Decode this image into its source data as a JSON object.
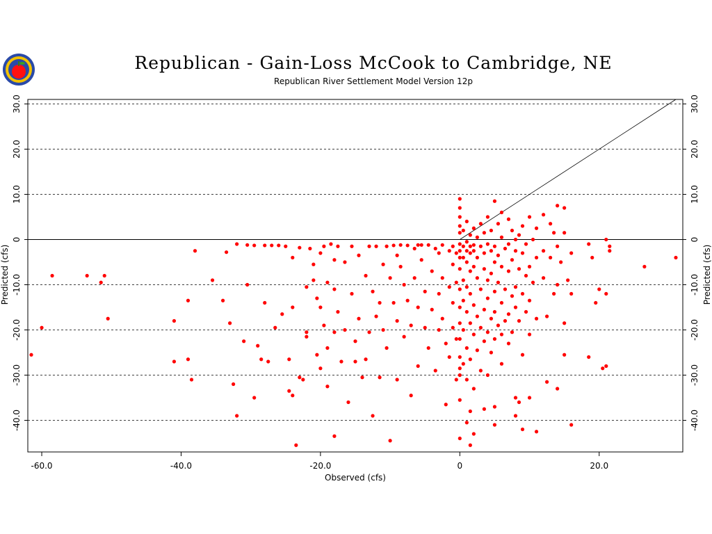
{
  "title": "Republican - Gain-Loss McCook to Cambridge, NE",
  "subtitle": "Republican River Settlement Model Version 12p",
  "logo": {
    "icon": "apple-logo-icon"
  },
  "colors": {
    "points": "#ff0000",
    "axes": "#000000",
    "background": "#ffffff"
  },
  "chart_data": {
    "type": "scatter",
    "title": "Republican - Gain-Loss McCook to Cambridge, NE",
    "subtitle": "Republican River Settlement Model Version 12p",
    "xlabel": "Observed (cfs)",
    "ylabel": "Predicted (cfs)",
    "xlim": [
      -62,
      32
    ],
    "ylim": [
      -47,
      31
    ],
    "xticks": [
      -60,
      -40,
      -20,
      0,
      20
    ],
    "xtick_labels": [
      "-60.0",
      "-40.0",
      "-20.0",
      "0",
      "20.0"
    ],
    "yticks": [
      30,
      20,
      10,
      0,
      -10,
      -20,
      -30,
      -40
    ],
    "ytick_labels": [
      "30.0",
      "20.0",
      "10.0",
      "0",
      "-10.0",
      "-20.0",
      "-30.0",
      "-40.0"
    ],
    "grid": "horizontal dashed",
    "reference_line": {
      "type": "1:1",
      "from": [
        0,
        0
      ],
      "to": [
        31,
        31
      ]
    },
    "points": [
      [
        -61.5,
        -25.5
      ],
      [
        -60,
        -19.5
      ],
      [
        -58.5,
        -8
      ],
      [
        -53.5,
        -8
      ],
      [
        -51.5,
        -9.5
      ],
      [
        -51,
        -8
      ],
      [
        -50.5,
        -17.5
      ],
      [
        -41,
        -18
      ],
      [
        -41,
        -27
      ],
      [
        -39,
        -13.5
      ],
      [
        -39,
        -26.5
      ],
      [
        -38.5,
        -31
      ],
      [
        -38,
        -2.5
      ],
      [
        -35.5,
        -9
      ],
      [
        -34,
        -13.5
      ],
      [
        -33.5,
        -2.8
      ],
      [
        -33,
        -18.5
      ],
      [
        -32.5,
        -32
      ],
      [
        -32,
        -39
      ],
      [
        -32,
        -1
      ],
      [
        -31,
        -22.5
      ],
      [
        -30.5,
        -10
      ],
      [
        -30.5,
        -1.2
      ],
      [
        -29.5,
        -1.3
      ],
      [
        -29.5,
        -35
      ],
      [
        -29,
        -23.5
      ],
      [
        -28.5,
        -26.5
      ],
      [
        -28,
        -1.3
      ],
      [
        -28,
        -14
      ],
      [
        -27.5,
        -27
      ],
      [
        -27,
        -1.3
      ],
      [
        -26.5,
        -19.5
      ],
      [
        -26,
        -1.3
      ],
      [
        -25.5,
        -16.5
      ],
      [
        -25,
        -1.5
      ],
      [
        -24.5,
        -26.5
      ],
      [
        -24.5,
        -33.5
      ],
      [
        -24,
        -4
      ],
      [
        -24,
        -15
      ],
      [
        -24,
        -34.5
      ],
      [
        -23.5,
        -45.5
      ],
      [
        -23,
        -1.8
      ],
      [
        -23,
        -30.5
      ],
      [
        -22.5,
        -31
      ],
      [
        -22,
        -10.5
      ],
      [
        -22,
        -20.5
      ],
      [
        -22,
        -21.5
      ],
      [
        -21.5,
        -2
      ],
      [
        -21,
        -5.5
      ],
      [
        -21,
        -9
      ],
      [
        -20.5,
        -13
      ],
      [
        -20.5,
        -25.5
      ],
      [
        -20,
        -3
      ],
      [
        -20,
        -15
      ],
      [
        -20,
        -28.5
      ],
      [
        -19.5,
        -1.5
      ],
      [
        -19.5,
        -19
      ],
      [
        -19,
        -9.5
      ],
      [
        -19,
        -24
      ],
      [
        -19,
        -32.5
      ],
      [
        -18.5,
        -1
      ],
      [
        -18,
        -4.5
      ],
      [
        -18,
        -11
      ],
      [
        -18,
        -20.5
      ],
      [
        -18,
        -43.5
      ],
      [
        -17.5,
        -1.5
      ],
      [
        -17.5,
        -16
      ],
      [
        -17,
        -27
      ],
      [
        -16.5,
        -5
      ],
      [
        -16.5,
        -20
      ],
      [
        -16,
        -36
      ],
      [
        -15.5,
        -1.5
      ],
      [
        -15.5,
        -12
      ],
      [
        -15,
        -22.5
      ],
      [
        -15,
        -27
      ],
      [
        -14.5,
        -3.5
      ],
      [
        -14.5,
        -17.5
      ],
      [
        -14,
        -30.5
      ],
      [
        -13.5,
        -8
      ],
      [
        -13.5,
        -26.5
      ],
      [
        -13,
        -1.5
      ],
      [
        -13,
        -20.5
      ],
      [
        -12.5,
        -11.5
      ],
      [
        -12.5,
        -39
      ],
      [
        -12,
        -1.5
      ],
      [
        -12,
        -17
      ],
      [
        -11.5,
        -14
      ],
      [
        -11.5,
        -30.5
      ],
      [
        -11,
        -5.5
      ],
      [
        -11,
        -20
      ],
      [
        -10.5,
        -1.5
      ],
      [
        -10.5,
        -24
      ],
      [
        -10,
        -8.5
      ],
      [
        -10,
        -44.5
      ],
      [
        -9.5,
        -1.3
      ],
      [
        -9.5,
        -14
      ],
      [
        -9,
        -3.5
      ],
      [
        -9,
        -18
      ],
      [
        -9,
        -31
      ],
      [
        -8.5,
        -6
      ],
      [
        -8.5,
        -1.2
      ],
      [
        -8,
        -10
      ],
      [
        -8,
        -21.5
      ],
      [
        -7.5,
        -1.3
      ],
      [
        -7.5,
        -13.5
      ],
      [
        -7,
        -19
      ],
      [
        -7,
        -34.5
      ],
      [
        -6.5,
        -2
      ],
      [
        -6.5,
        -8.5
      ],
      [
        -6,
        -1.2
      ],
      [
        -6,
        -15
      ],
      [
        -6,
        -28
      ],
      [
        -5.5,
        -1.2
      ],
      [
        -5.5,
        -4.5
      ],
      [
        -5,
        -11.5
      ],
      [
        -5,
        -19.5
      ],
      [
        -4.5,
        -1.2
      ],
      [
        -4.5,
        -24
      ],
      [
        -4,
        -7
      ],
      [
        -4,
        -15.5
      ],
      [
        -3.5,
        -2
      ],
      [
        -3.5,
        -29
      ],
      [
        -3,
        -3
      ],
      [
        -3,
        -12
      ],
      [
        -3,
        -20
      ],
      [
        -2.5,
        -1.2
      ],
      [
        -2.5,
        -8.5
      ],
      [
        -2.5,
        -17.5
      ],
      [
        -2,
        -23
      ],
      [
        -2,
        -36.5
      ],
      [
        -1.5,
        -2.5
      ],
      [
        -1.5,
        -10.5
      ],
      [
        -1.5,
        -26
      ],
      [
        -1,
        -1.5
      ],
      [
        -1,
        -5.5
      ],
      [
        -1,
        -14
      ],
      [
        -1,
        -19.5
      ],
      [
        -0.5,
        -3
      ],
      [
        -0.5,
        -9.5
      ],
      [
        -0.5,
        -22
      ],
      [
        -0.5,
        -31
      ],
      [
        0,
        9
      ],
      [
        0,
        7
      ],
      [
        0,
        5
      ],
      [
        0,
        3
      ],
      [
        0,
        1.5
      ],
      [
        0,
        -1
      ],
      [
        0,
        -2.5
      ],
      [
        0,
        -4
      ],
      [
        0,
        -6.5
      ],
      [
        0,
        -11
      ],
      [
        0,
        -15
      ],
      [
        0,
        -18.5
      ],
      [
        0,
        -22
      ],
      [
        0,
        -26
      ],
      [
        0,
        -28.5
      ],
      [
        0,
        -30
      ],
      [
        0,
        -35.5
      ],
      [
        0,
        -44
      ],
      [
        0.5,
        2
      ],
      [
        0.5,
        -1.5
      ],
      [
        0.5,
        -4
      ],
      [
        0.5,
        -9
      ],
      [
        0.5,
        -13.5
      ],
      [
        0.5,
        -20
      ],
      [
        0.5,
        -27.5
      ],
      [
        1,
        4
      ],
      [
        1,
        -0.5
      ],
      [
        1,
        -2.5
      ],
      [
        1,
        -5
      ],
      [
        1,
        -10.5
      ],
      [
        1,
        -16
      ],
      [
        1,
        -24
      ],
      [
        1,
        -31
      ],
      [
        1,
        -40.5
      ],
      [
        1.5,
        1
      ],
      [
        1.5,
        -1.5
      ],
      [
        1.5,
        -3
      ],
      [
        1.5,
        -7
      ],
      [
        1.5,
        -12
      ],
      [
        1.5,
        -18.5
      ],
      [
        1.5,
        -26.5
      ],
      [
        1.5,
        -38
      ],
      [
        1.5,
        -45.5
      ],
      [
        2,
        2.5
      ],
      [
        2,
        -1.2
      ],
      [
        2,
        -2.5
      ],
      [
        2,
        -6
      ],
      [
        2,
        -14.5
      ],
      [
        2,
        -21
      ],
      [
        2,
        -33
      ],
      [
        2,
        -43
      ],
      [
        2.5,
        0.5
      ],
      [
        2.5,
        -4
      ],
      [
        2.5,
        -8.5
      ],
      [
        2.5,
        -17
      ],
      [
        2.5,
        -24.5
      ],
      [
        3,
        3.5
      ],
      [
        3,
        -1.5
      ],
      [
        3,
        -11
      ],
      [
        3,
        -19.5
      ],
      [
        3,
        -29
      ],
      [
        3.5,
        1.5
      ],
      [
        3.5,
        -3
      ],
      [
        3.5,
        -6.5
      ],
      [
        3.5,
        -15.5
      ],
      [
        3.5,
        -22.5
      ],
      [
        3.5,
        -37.5
      ],
      [
        4,
        5
      ],
      [
        4,
        -1
      ],
      [
        4,
        -9
      ],
      [
        4,
        -13
      ],
      [
        4,
        -20.5
      ],
      [
        4,
        -30
      ],
      [
        4.5,
        2
      ],
      [
        4.5,
        -2.5
      ],
      [
        4.5,
        -7.5
      ],
      [
        4.5,
        -17.5
      ],
      [
        4.5,
        -25
      ],
      [
        5,
        8.5
      ],
      [
        5,
        -1.5
      ],
      [
        5,
        -5
      ],
      [
        5,
        -11.5
      ],
      [
        5,
        -16
      ],
      [
        5,
        -22
      ],
      [
        5,
        -41
      ],
      [
        5,
        -37
      ],
      [
        5.5,
        3.5
      ],
      [
        5.5,
        -3.5
      ],
      [
        5.5,
        -9.5
      ],
      [
        5.5,
        -19
      ],
      [
        6,
        6
      ],
      [
        6,
        0.5
      ],
      [
        6,
        -6
      ],
      [
        6,
        -14
      ],
      [
        6,
        -21
      ],
      [
        6,
        -27.5
      ],
      [
        6.5,
        -2
      ],
      [
        6.5,
        -11
      ],
      [
        6.5,
        -18
      ],
      [
        7,
        4.5
      ],
      [
        7,
        -1
      ],
      [
        7,
        -7
      ],
      [
        7,
        -16.5
      ],
      [
        7,
        -23
      ],
      [
        7.5,
        2
      ],
      [
        7.5,
        -4.5
      ],
      [
        7.5,
        -12.5
      ],
      [
        7.5,
        -20.5
      ],
      [
        8,
        0
      ],
      [
        8,
        -2.5
      ],
      [
        8,
        -10.5
      ],
      [
        8,
        -15
      ],
      [
        8,
        -35
      ],
      [
        8,
        -39
      ],
      [
        8.5,
        1
      ],
      [
        8.5,
        -6.5
      ],
      [
        8.5,
        -18
      ],
      [
        8.5,
        -36
      ],
      [
        9,
        3
      ],
      [
        9,
        -3
      ],
      [
        9,
        -12
      ],
      [
        9,
        -25.5
      ],
      [
        9,
        -42
      ],
      [
        9.5,
        -1
      ],
      [
        9.5,
        -8
      ],
      [
        9.5,
        -16
      ],
      [
        10,
        5
      ],
      [
        10,
        -6
      ],
      [
        10,
        -13.5
      ],
      [
        10,
        -21
      ],
      [
        10,
        -35
      ],
      [
        10.5,
        0
      ],
      [
        10.5,
        -9.5
      ],
      [
        11,
        2.5
      ],
      [
        11,
        -4
      ],
      [
        11,
        -17.5
      ],
      [
        11,
        -42.5
      ],
      [
        12,
        5.5
      ],
      [
        12,
        -2.5
      ],
      [
        12,
        -8.5
      ],
      [
        12.5,
        -17
      ],
      [
        12.5,
        -31.5
      ],
      [
        13,
        3.5
      ],
      [
        13,
        -4
      ],
      [
        13.5,
        1.5
      ],
      [
        13.5,
        -12
      ],
      [
        14,
        7.5
      ],
      [
        14,
        -1.5
      ],
      [
        14,
        -10
      ],
      [
        14,
        -33
      ],
      [
        14.5,
        -5
      ],
      [
        15,
        7
      ],
      [
        15,
        1.5
      ],
      [
        15,
        -18.5
      ],
      [
        15,
        -25.5
      ],
      [
        15.5,
        -9
      ],
      [
        16,
        -3
      ],
      [
        16,
        -12
      ],
      [
        16,
        -41
      ],
      [
        18.5,
        -1
      ],
      [
        18.5,
        -26
      ],
      [
        19,
        -4
      ],
      [
        19.5,
        -14
      ],
      [
        20,
        -11
      ],
      [
        20.5,
        -28.5
      ],
      [
        21,
        -12
      ],
      [
        21,
        -28
      ],
      [
        21,
        0
      ],
      [
        21.5,
        -1.5
      ],
      [
        21.5,
        -2.5
      ],
      [
        26.5,
        -6
      ],
      [
        31,
        -4
      ]
    ]
  }
}
